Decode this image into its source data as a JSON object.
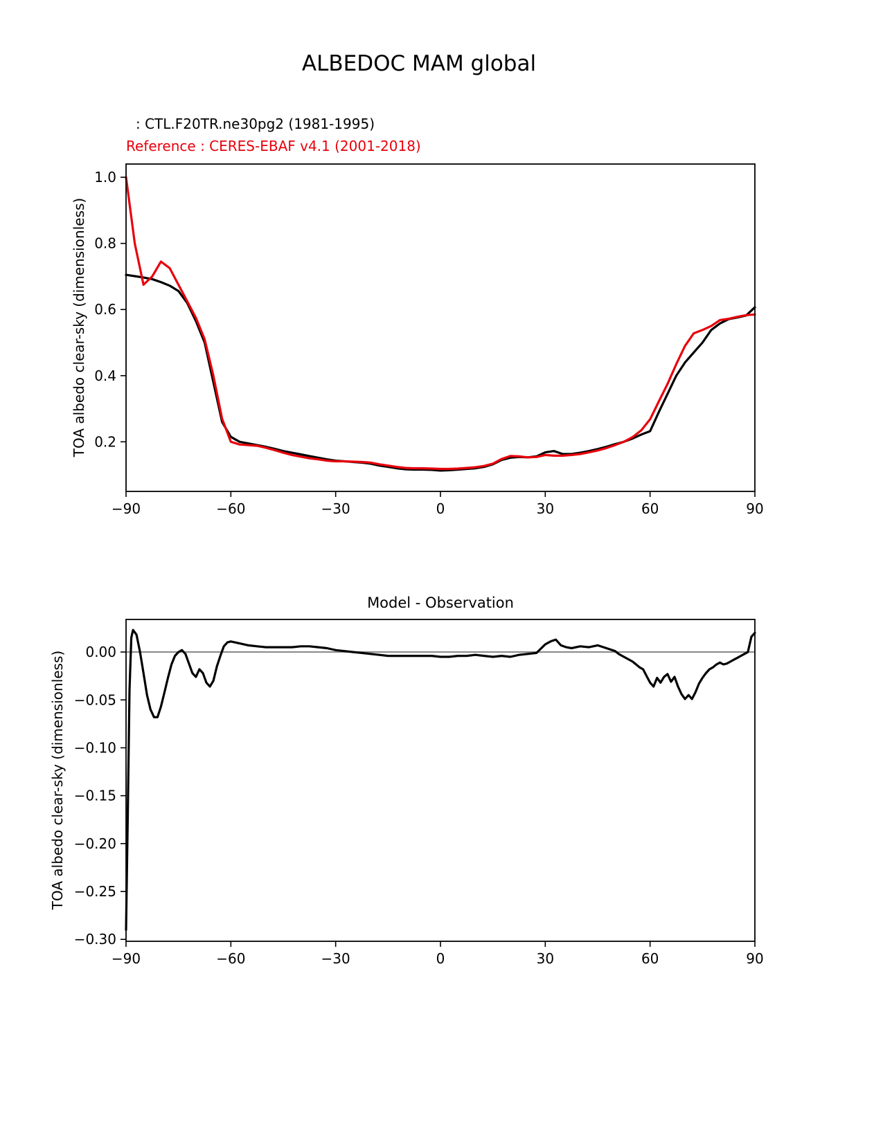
{
  "page": {
    "title": "ALBEDOC MAM global",
    "legend": {
      "model_label": ": CTL.F20TR.ne30pg2 (1981-1995)",
      "reference_label": "Reference : CERES-EBAF v4.1 (2001-2018)"
    },
    "colors": {
      "model": "#000000",
      "reference": "#e8000b",
      "zero_line": "#8c8c8c",
      "axis": "#000000"
    }
  },
  "chart_data": [
    {
      "type": "line",
      "title": "",
      "xlabel": "",
      "ylabel": "TOA albedo clear-sky (dimensionless)",
      "xlim": [
        -90,
        90
      ],
      "ylim": [
        0.05,
        1.04
      ],
      "grid": false,
      "legend_position": "above-left",
      "xticks": [
        -90,
        -60,
        -30,
        0,
        30,
        60,
        90
      ],
      "xtick_labels": [
        "−90",
        "−60",
        "−30",
        "0",
        "30",
        "60",
        "90"
      ],
      "yticks": [
        0.2,
        0.4,
        0.6,
        0.8,
        1.0
      ],
      "ytick_labels": [
        "0.2",
        "0.4",
        "0.6",
        "0.8",
        "1.0"
      ],
      "x": [
        -90,
        -87.5,
        -85,
        -82.5,
        -80,
        -77.5,
        -75,
        -72.5,
        -70,
        -67.5,
        -65,
        -62.5,
        -60,
        -57.5,
        -55,
        -52.5,
        -50,
        -47.5,
        -45,
        -42.5,
        -40,
        -37.5,
        -35,
        -32.5,
        -30,
        -27.5,
        -25,
        -22.5,
        -20,
        -17.5,
        -15,
        -12.5,
        -10,
        -7.5,
        -5,
        -2.5,
        0,
        2.5,
        5,
        7.5,
        10,
        12.5,
        15,
        17.5,
        20,
        22.5,
        25,
        27.5,
        30,
        32.5,
        35,
        37.5,
        40,
        42.5,
        45,
        47.5,
        50,
        52.5,
        55,
        57.5,
        60,
        62.5,
        65,
        67.5,
        70,
        72.5,
        75,
        77.5,
        80,
        82.5,
        85,
        87.5,
        90
      ],
      "series": [
        {
          "name": "CTL.F20TR.ne30pg2 (1981-1995)",
          "color": "#000000",
          "values": [
            0.705,
            0.701,
            0.697,
            0.692,
            0.683,
            0.672,
            0.656,
            0.62,
            0.565,
            0.5,
            0.38,
            0.26,
            0.215,
            0.2,
            0.195,
            0.19,
            0.185,
            0.179,
            0.172,
            0.167,
            0.162,
            0.157,
            0.152,
            0.147,
            0.143,
            0.141,
            0.139,
            0.137,
            0.134,
            0.128,
            0.124,
            0.12,
            0.117,
            0.116,
            0.116,
            0.115,
            0.113,
            0.114,
            0.116,
            0.118,
            0.12,
            0.124,
            0.132,
            0.145,
            0.152,
            0.154,
            0.153,
            0.156,
            0.168,
            0.172,
            0.163,
            0.163,
            0.167,
            0.172,
            0.178,
            0.185,
            0.193,
            0.2,
            0.21,
            0.222,
            0.232,
            0.29,
            0.345,
            0.4,
            0.44,
            0.47,
            0.5,
            0.538,
            0.558,
            0.571,
            0.576,
            0.582,
            0.607
          ]
        },
        {
          "name": "CERES-EBAF v4.1 (2001-2018)",
          "color": "#e8000b",
          "values": [
            1.0,
            0.8,
            0.675,
            0.7,
            0.745,
            0.725,
            0.675,
            0.625,
            0.575,
            0.51,
            0.4,
            0.27,
            0.2,
            0.192,
            0.19,
            0.188,
            0.182,
            0.175,
            0.167,
            0.16,
            0.155,
            0.15,
            0.147,
            0.143,
            0.141,
            0.141,
            0.14,
            0.139,
            0.137,
            0.132,
            0.128,
            0.124,
            0.121,
            0.12,
            0.12,
            0.119,
            0.118,
            0.118,
            0.119,
            0.121,
            0.123,
            0.127,
            0.134,
            0.148,
            0.157,
            0.156,
            0.153,
            0.154,
            0.16,
            0.158,
            0.158,
            0.16,
            0.163,
            0.168,
            0.174,
            0.181,
            0.19,
            0.2,
            0.214,
            0.235,
            0.268,
            0.322,
            0.375,
            0.435,
            0.49,
            0.528,
            0.538,
            0.55,
            0.568,
            0.572,
            0.578,
            0.583,
            0.585
          ]
        }
      ]
    },
    {
      "type": "line",
      "title": "Model - Observation",
      "xlabel": "",
      "ylabel": "TOA albedo clear-sky (dimensionless)",
      "xlim": [
        -90,
        90
      ],
      "ylim": [
        -0.302,
        0.034
      ],
      "grid": false,
      "zero_line": 0,
      "xticks": [
        -90,
        -60,
        -30,
        0,
        30,
        60,
        90
      ],
      "xtick_labels": [
        "−90",
        "−60",
        "−30",
        "0",
        "30",
        "60",
        "90"
      ],
      "yticks": [
        0.0,
        -0.05,
        -0.1,
        -0.15,
        -0.2,
        -0.25,
        -0.3
      ],
      "ytick_labels": [
        "0.00",
        "−0.05",
        "−0.10",
        "−0.15",
        "−0.20",
        "−0.25",
        "−0.30"
      ],
      "x": [
        -90,
        -89.5,
        -89,
        -88.5,
        -88,
        -87,
        -86,
        -85,
        -84,
        -83,
        -82,
        -81,
        -80,
        -79,
        -78,
        -77,
        -76,
        -75,
        -74,
        -73,
        -72,
        -71,
        -70,
        -69,
        -68,
        -67,
        -66,
        -65,
        -64,
        -63,
        -62,
        -61,
        -60,
        -57.5,
        -55,
        -52.5,
        -50,
        -47.5,
        -45,
        -42.5,
        -40,
        -37.5,
        -35,
        -32.5,
        -30,
        -27.5,
        -25,
        -22.5,
        -20,
        -17.5,
        -15,
        -12.5,
        -10,
        -7.5,
        -5,
        -2.5,
        0,
        2.5,
        5,
        7.5,
        10,
        12.5,
        15,
        17.5,
        20,
        22.5,
        25,
        27.5,
        30,
        31.5,
        33,
        34.5,
        36,
        37.5,
        40,
        42.5,
        45,
        47.5,
        50,
        51,
        52,
        53,
        54,
        55,
        56,
        57,
        58,
        59,
        60,
        61,
        62,
        63,
        64,
        65,
        66,
        67,
        68,
        69,
        70,
        71,
        72,
        73,
        74,
        75,
        76,
        77,
        78,
        79,
        80,
        81,
        82,
        83,
        84,
        85,
        86,
        87,
        88,
        89,
        90
      ],
      "series": [
        {
          "name": "Model - Observation",
          "color": "#000000",
          "values": [
            -0.29,
            -0.17,
            -0.04,
            0.015,
            0.023,
            0.018,
            0.0,
            -0.022,
            -0.045,
            -0.06,
            -0.068,
            -0.068,
            -0.057,
            -0.042,
            -0.027,
            -0.013,
            -0.004,
            0.0,
            0.002,
            -0.002,
            -0.012,
            -0.022,
            -0.026,
            -0.018,
            -0.022,
            -0.032,
            -0.036,
            -0.03,
            -0.015,
            -0.004,
            0.006,
            0.01,
            0.011,
            0.009,
            0.007,
            0.006,
            0.005,
            0.005,
            0.005,
            0.005,
            0.006,
            0.006,
            0.005,
            0.004,
            0.002,
            0.001,
            0.0,
            -0.001,
            -0.002,
            -0.003,
            -0.004,
            -0.004,
            -0.004,
            -0.004,
            -0.004,
            -0.004,
            -0.005,
            -0.005,
            -0.004,
            -0.004,
            -0.003,
            -0.004,
            -0.005,
            -0.004,
            -0.005,
            -0.003,
            -0.002,
            -0.001,
            0.008,
            0.011,
            0.013,
            0.007,
            0.005,
            0.004,
            0.006,
            0.005,
            0.007,
            0.004,
            0.001,
            -0.002,
            -0.004,
            -0.006,
            -0.008,
            -0.01,
            -0.013,
            -0.016,
            -0.018,
            -0.025,
            -0.032,
            -0.036,
            -0.027,
            -0.032,
            -0.026,
            -0.023,
            -0.031,
            -0.026,
            -0.036,
            -0.044,
            -0.049,
            -0.045,
            -0.049,
            -0.042,
            -0.033,
            -0.027,
            -0.022,
            -0.018,
            -0.016,
            -0.013,
            -0.011,
            -0.013,
            -0.012,
            -0.01,
            -0.008,
            -0.006,
            -0.004,
            -0.002,
            0.0,
            0.016,
            0.02
          ]
        }
      ]
    }
  ]
}
